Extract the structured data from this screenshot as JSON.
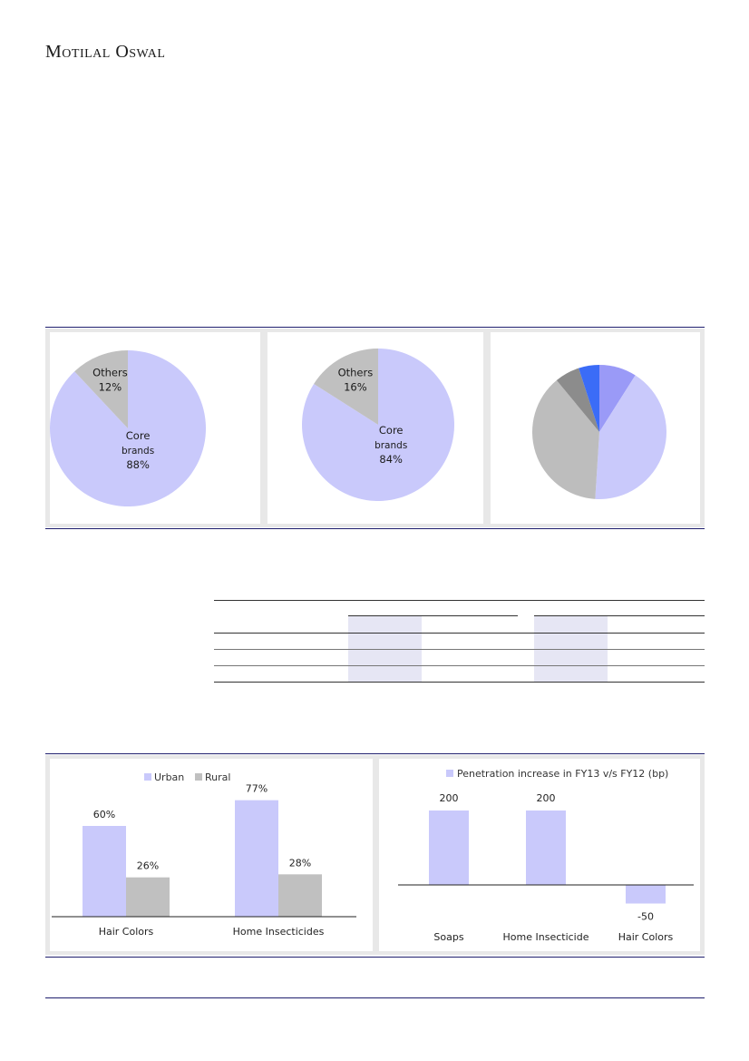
{
  "header": {
    "brand": "Motilal Oswal"
  },
  "charts": [
    {
      "type": "pie",
      "slices": [
        {
          "label": "Core",
          "sub": "brands",
          "value": 88,
          "pct_label": "88%",
          "color": "#c9c9fb"
        },
        {
          "label": "Others",
          "value": 12,
          "pct_label": "12%",
          "color": "#c0c0c0"
        }
      ]
    },
    {
      "type": "pie",
      "slices": [
        {
          "label": "Core",
          "sub": "brands",
          "value": 84,
          "pct_label": "84%",
          "color": "#c9c9fb"
        },
        {
          "label": "Others",
          "value": 16,
          "pct_label": "16%",
          "color": "#c0c0c0"
        }
      ]
    },
    {
      "type": "pie",
      "slices": [
        {
          "value": 9,
          "color": "#9a9af7"
        },
        {
          "value": 42,
          "color": "#c9c9fb"
        },
        {
          "value": 38,
          "color": "#bdbdbd"
        },
        {
          "value": 6,
          "color": "#8c8c8c"
        },
        {
          "value": 5,
          "color": "#3b6cf7"
        }
      ]
    }
  ],
  "chart_data": [
    {
      "type": "bar",
      "categories": [
        "Hair Colors",
        "Home Insecticides"
      ],
      "series": [
        {
          "name": "Urban",
          "values": [
            60,
            77
          ],
          "labels": [
            "60%",
            "77%"
          ],
          "color": "#c9c9fb"
        },
        {
          "name": "Rural",
          "values": [
            26,
            28
          ],
          "labels": [
            "26%",
            "28%"
          ],
          "color": "#c0c0c0"
        }
      ],
      "ylim": [
        0,
        90
      ],
      "legend": "top"
    },
    {
      "type": "bar",
      "categories": [
        "Soaps",
        "Home Insecticide",
        "Hair Colors"
      ],
      "series": [
        {
          "name": "Penetration increase in FY13 v/s FY12 (bp)",
          "values": [
            200,
            200,
            -50
          ],
          "labels": [
            "200",
            "200",
            "-50"
          ],
          "color": "#c9c9fb"
        }
      ],
      "ylim": [
        -100,
        250
      ],
      "legend": "top"
    }
  ]
}
